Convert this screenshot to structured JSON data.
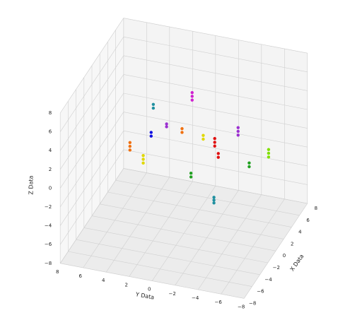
{
  "chart_data": {
    "type": "scatter3d",
    "xlabel": "X Data",
    "ylabel": "Y Data",
    "zlabel": "Z Data",
    "xlim": [
      -8,
      8
    ],
    "ylim": [
      -8,
      8
    ],
    "zlim": [
      -8,
      8
    ],
    "xticks": [
      {
        "value": -8,
        "label": "−8"
      },
      {
        "value": -6,
        "label": "−6"
      },
      {
        "value": -4,
        "label": "−4"
      },
      {
        "value": -2,
        "label": "−2"
      },
      0,
      2,
      4,
      6,
      8
    ],
    "yticks": [
      {
        "value": -8,
        "label": "−8"
      },
      {
        "value": -6,
        "label": "−6"
      },
      {
        "value": -4,
        "label": "−4"
      },
      {
        "value": -2,
        "label": "−2"
      },
      0,
      2,
      4,
      6,
      8
    ],
    "zticks": [
      {
        "value": -8,
        "label": "−8"
      },
      {
        "value": -6,
        "label": "−6"
      },
      {
        "value": -4,
        "label": "−4"
      },
      {
        "value": -2,
        "label": "−2"
      },
      0,
      2,
      4,
      6,
      8
    ],
    "grid": true,
    "series": [
      {
        "color": "#f07010",
        "x": [
          -2,
          -2,
          -2,
          1,
          1
        ],
        "y": [
          4,
          4,
          4,
          0.5,
          0.5
        ],
        "z": [
          1.2,
          1.6,
          2.0,
          2.0,
          2.4
        ]
      },
      {
        "color": "#e0d800",
        "x": [
          -3,
          -3,
          -3,
          2,
          2
        ],
        "y": [
          2.5,
          2.5,
          2.5,
          -1,
          -1
        ],
        "z": [
          0.8,
          1.2,
          1.6,
          1.0,
          1.4
        ]
      },
      {
        "color": "#1010e0",
        "x": [
          -1,
          -1
        ],
        "y": [
          2.5,
          2.5
        ],
        "z": [
          2.4,
          2.8
        ]
      },
      {
        "color": "#9b30d0",
        "x": [
          0,
          0,
          5,
          5,
          5
        ],
        "y": [
          1.5,
          1.5,
          -3,
          -3,
          -3
        ],
        "z": [
          3,
          3.3,
          0,
          0.4,
          0.8
        ]
      },
      {
        "color": "#e01010",
        "x": [
          2,
          2,
          2,
          0,
          0
        ],
        "y": [
          -2,
          -2,
          -2,
          -3,
          -3
        ],
        "z": [
          0.5,
          0.9,
          1.3,
          0.8,
          1.2
        ]
      },
      {
        "color": "#20a020",
        "x": [
          -4,
          -4,
          2,
          2
        ],
        "y": [
          -2,
          -2,
          -5,
          -5
        ],
        "z": [
          1,
          1.4,
          -1,
          -0.6
        ]
      },
      {
        "color": "#2090a0",
        "x": [
          -4,
          -4,
          -4,
          1,
          1
        ],
        "y": [
          -4,
          -4,
          -4,
          3,
          3
        ],
        "z": [
          -1.3,
          -1,
          -0.7,
          4,
          4.4
        ]
      },
      {
        "color": "#80e000",
        "x": [
          4,
          4,
          4
        ],
        "y": [
          -6,
          -6,
          -6
        ],
        "z": [
          -1,
          -0.6,
          -0.2
        ]
      },
      {
        "color": "#d020d0",
        "x": [
          5,
          5,
          5
        ],
        "y": [
          1,
          1,
          1
        ],
        "z": [
          2.8,
          3.2,
          3.6
        ]
      }
    ]
  }
}
